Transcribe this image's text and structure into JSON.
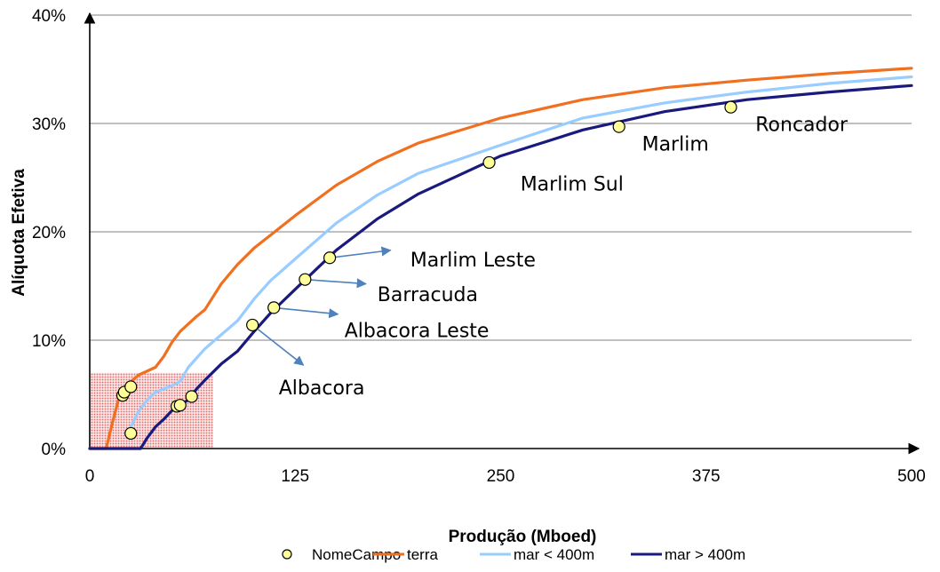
{
  "chart_data": {
    "type": "line",
    "xlabel": "Produção (Mboed)",
    "ylabel": "Alíquota Efetiva",
    "xlim": [
      0,
      500
    ],
    "ylim": [
      0,
      0.4
    ],
    "x_ticks": [
      0,
      125,
      250,
      375,
      500
    ],
    "x_tick_labels": [
      "0",
      "125",
      "250",
      "375",
      "500"
    ],
    "y_ticks": [
      0,
      0.1,
      0.2,
      0.3,
      0.4
    ],
    "y_tick_labels": [
      "0%",
      "10%",
      "20%",
      "30%",
      "40%"
    ],
    "grid": "horizontal",
    "legend_position": "bottom",
    "series": [
      {
        "name": "terra",
        "color": "#f07020",
        "x": [
          0,
          10,
          14,
          18,
          22,
          30,
          40,
          45,
          50,
          55,
          60,
          65,
          70,
          75,
          80,
          90,
          100,
          110,
          125,
          150,
          175,
          200,
          250,
          300,
          350,
          400,
          450,
          500
        ],
        "y": [
          0,
          0,
          0.025,
          0.048,
          0.058,
          0.068,
          0.075,
          0.085,
          0.098,
          0.108,
          0.115,
          0.122,
          0.128,
          0.14,
          0.152,
          0.17,
          0.185,
          0.197,
          0.215,
          0.243,
          0.265,
          0.282,
          0.305,
          0.322,
          0.333,
          0.34,
          0.346,
          0.351
        ]
      },
      {
        "name": "mar < 400m",
        "color": "#99ccff",
        "x": [
          25,
          30,
          35,
          40,
          45,
          50,
          55,
          60,
          70,
          80,
          90,
          100,
          110,
          125,
          150,
          175,
          200,
          250,
          300,
          350,
          400,
          450,
          500
        ],
        "y": [
          0.02,
          0.035,
          0.045,
          0.052,
          0.055,
          0.058,
          0.062,
          0.075,
          0.092,
          0.105,
          0.118,
          0.138,
          0.155,
          0.175,
          0.208,
          0.234,
          0.254,
          0.28,
          0.305,
          0.319,
          0.329,
          0.337,
          0.343
        ]
      },
      {
        "name": "mar > 400m",
        "color": "#1a1a7e",
        "x": [
          0,
          31,
          35,
          40,
          45,
          50,
          55,
          60,
          65,
          70,
          80,
          90,
          100,
          110,
          125,
          150,
          175,
          200,
          250,
          300,
          350,
          400,
          450,
          500
        ],
        "y": [
          0,
          0,
          0.01,
          0.02,
          0.027,
          0.035,
          0.04,
          0.045,
          0.055,
          0.063,
          0.078,
          0.09,
          0.108,
          0.125,
          0.147,
          0.183,
          0.212,
          0.235,
          0.27,
          0.294,
          0.311,
          0.322,
          0.329,
          0.335
        ]
      },
      {
        "name": "NomeCampo",
        "type": "scatter",
        "color": "#ffff99",
        "points": [
          {
            "x": 20,
            "y": 0.049,
            "label": ""
          },
          {
            "x": 21,
            "y": 0.052,
            "label": ""
          },
          {
            "x": 25,
            "y": 0.057,
            "label": ""
          },
          {
            "x": 25,
            "y": 0.014,
            "label": ""
          },
          {
            "x": 53,
            "y": 0.039,
            "label": ""
          },
          {
            "x": 55,
            "y": 0.04,
            "label": ""
          },
          {
            "x": 62,
            "y": 0.048,
            "label": ""
          },
          {
            "x": 99,
            "y": 0.114,
            "label": "Albacora"
          },
          {
            "x": 112,
            "y": 0.13,
            "label": "Albacora Leste"
          },
          {
            "x": 131,
            "y": 0.156,
            "label": "Barracuda"
          },
          {
            "x": 146,
            "y": 0.176,
            "label": "Marlim Leste"
          },
          {
            "x": 243,
            "y": 0.264,
            "label": "Marlim Sul"
          },
          {
            "x": 322,
            "y": 0.297,
            "label": "Marlim"
          },
          {
            "x": 390,
            "y": 0.315,
            "label": "Roncador"
          }
        ]
      }
    ],
    "annotations": [
      {
        "text": "Albacora",
        "x": 115,
        "y": 0.05,
        "arrow_from": [
          99,
          0.114
        ],
        "arrow_to": [
          130,
          0.077
        ]
      },
      {
        "text": "Albacora Leste",
        "x": 155,
        "y": 0.103,
        "arrow_from": [
          112,
          0.13
        ],
        "arrow_to": [
          151,
          0.124
        ]
      },
      {
        "text": "Barracuda",
        "x": 175,
        "y": 0.136,
        "arrow_from": [
          131,
          0.156
        ],
        "arrow_to": [
          168,
          0.152
        ]
      },
      {
        "text": "Marlim Leste",
        "x": 195,
        "y": 0.168,
        "arrow_from": [
          146,
          0.176
        ],
        "arrow_to": [
          183,
          0.183
        ]
      },
      {
        "text": "Marlim Sul",
        "x": 262,
        "y": 0.238,
        "arrow_from": null,
        "arrow_to": null
      },
      {
        "text": "Marlim",
        "x": 336,
        "y": 0.275,
        "arrow_from": null,
        "arrow_to": null
      },
      {
        "text": "Roncador",
        "x": 405,
        "y": 0.293,
        "arrow_from": null,
        "arrow_to": null
      }
    ],
    "highlight_region": {
      "x": [
        0,
        75
      ],
      "y": [
        0,
        0.07
      ],
      "color": "#ff9999"
    },
    "legend": [
      "NomeCampo",
      "terra",
      "mar < 400m",
      "mar > 400m"
    ]
  }
}
